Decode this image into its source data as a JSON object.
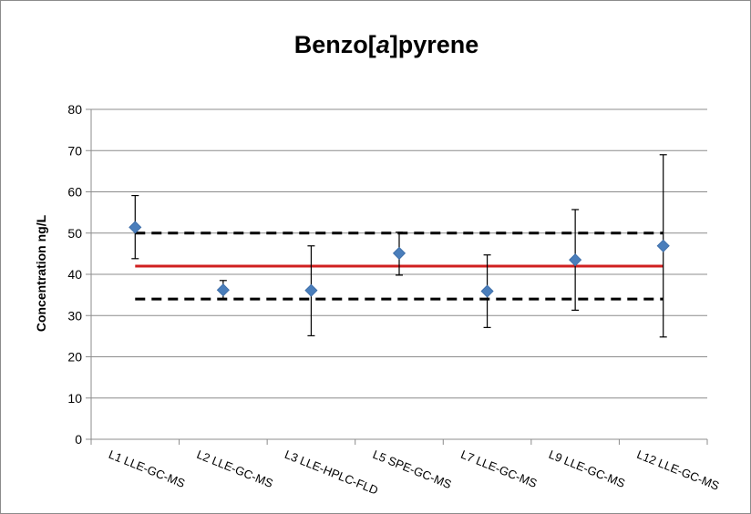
{
  "chart_data": {
    "type": "scatter",
    "title": "Benzo[a]pyrene",
    "title_parts": {
      "prefix": "Benzo[",
      "italic": "a",
      "suffix": "]pyrene"
    },
    "ylabel": "Concentration ng/L",
    "xlabel": "",
    "ylim": [
      0,
      80
    ],
    "y_ticks": [
      0,
      10,
      20,
      30,
      40,
      50,
      60,
      70,
      80
    ],
    "grid": true,
    "legend": "none",
    "categories": [
      "L1 LLE-GC-MS",
      "L2 LLE-GC-MS",
      "L3 LLE-HPLC-FLD",
      "L5 SPE-GC-MS",
      "L7 LLE-GC-MS",
      "L9 LLE-GC-MS",
      "L12 LLE-GC-MS"
    ],
    "series": [
      {
        "values": [
          51.4,
          36.2,
          36.1,
          45.1,
          35.9,
          43.5,
          46.9
        ],
        "error_low": [
          43.8,
          34.0,
          25.1,
          39.8,
          27.1,
          31.3,
          24.8
        ],
        "error_high": [
          59.1,
          38.5,
          46.9,
          50.2,
          44.7,
          55.7,
          69.0
        ],
        "marker": "diamond",
        "color": "#4a7ebb"
      }
    ],
    "reference_lines": [
      {
        "value": 42,
        "style": "solid",
        "color": "#d02020"
      },
      {
        "value": 50,
        "style": "dashed",
        "color": "#000000"
      },
      {
        "value": 34,
        "style": "dashed",
        "color": "#000000"
      }
    ],
    "colors": {
      "grid": "#8c8c8c",
      "axis": "#8c8c8c",
      "error_bar": "#000000"
    }
  }
}
